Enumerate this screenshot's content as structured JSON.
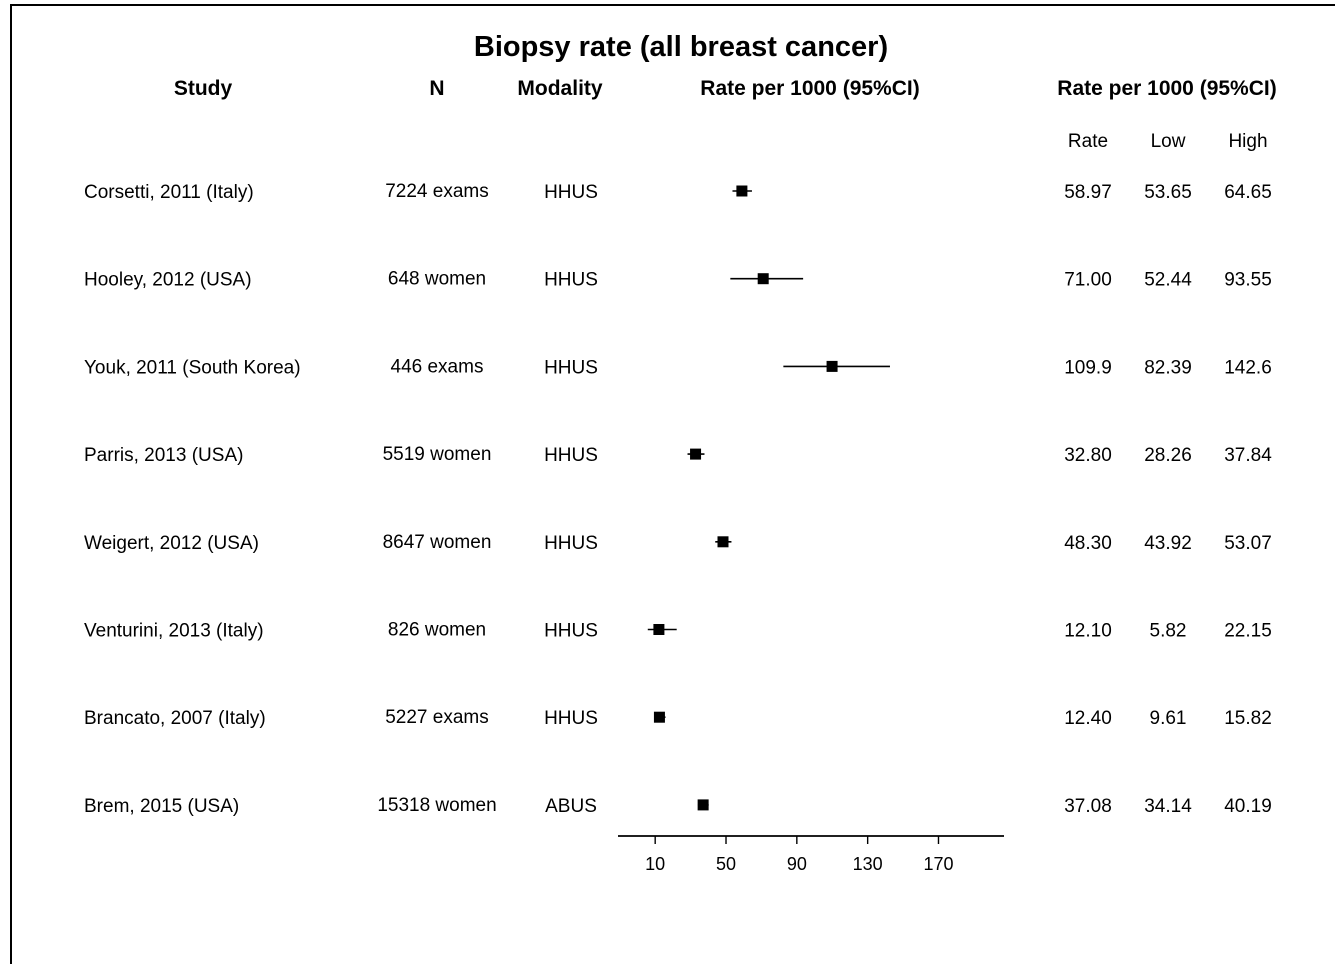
{
  "chart_data": {
    "type": "forest",
    "title": "Biopsy rate (all breast cancer)",
    "headers": {
      "study": "Study",
      "n": "N",
      "modality": "Modality",
      "plot": "Rate per 1000 (95%CI)",
      "table": "Rate per 1000 (95%CI)",
      "rate": "Rate",
      "low": "Low",
      "high": "High"
    },
    "rows": [
      {
        "study": "Corsetti, 2011 (Italy)",
        "n": "7224 exams",
        "modality": "HHUS",
        "rate": 58.97,
        "low": 53.65,
        "high": 64.65,
        "rate_text": "58.97",
        "low_text": "53.65",
        "high_text": "64.65"
      },
      {
        "study": "Hooley, 2012 (USA)",
        "n": "648 women",
        "modality": "HHUS",
        "rate": 71.0,
        "low": 52.44,
        "high": 93.55,
        "rate_text": "71.00",
        "low_text": "52.44",
        "high_text": "93.55"
      },
      {
        "study": "Youk, 2011 (South Korea)",
        "n": "446 exams",
        "modality": "HHUS",
        "rate": 109.9,
        "low": 82.39,
        "high": 142.6,
        "rate_text": "109.9",
        "low_text": "82.39",
        "high_text": "142.6"
      },
      {
        "study": "Parris, 2013 (USA)",
        "n": "5519 women",
        "modality": "HHUS",
        "rate": 32.8,
        "low": 28.26,
        "high": 37.84,
        "rate_text": "32.80",
        "low_text": "28.26",
        "high_text": "37.84"
      },
      {
        "study": "Weigert, 2012 (USA)",
        "n": "8647 women",
        "modality": "HHUS",
        "rate": 48.3,
        "low": 43.92,
        "high": 53.07,
        "rate_text": "48.30",
        "low_text": "43.92",
        "high_text": "53.07"
      },
      {
        "study": "Venturini, 2013 (Italy)",
        "n": "826 women",
        "modality": "HHUS",
        "rate": 12.1,
        "low": 5.82,
        "high": 22.15,
        "rate_text": "12.10",
        "low_text": "5.82",
        "high_text": "22.15"
      },
      {
        "study": "Brancato, 2007 (Italy)",
        "n": "5227 exams",
        "modality": "HHUS",
        "rate": 12.4,
        "low": 9.61,
        "high": 15.82,
        "rate_text": "12.40",
        "low_text": "9.61",
        "high_text": "15.82"
      },
      {
        "study": "Brem, 2015 (USA)",
        "n": "15318 women",
        "modality": "ABUS",
        "rate": 37.08,
        "low": 34.14,
        "high": 40.19,
        "rate_text": "37.08",
        "low_text": "34.14",
        "high_text": "40.19"
      }
    ],
    "x_ticks": [
      10,
      50,
      90,
      130,
      170
    ],
    "xlim": [
      -11,
      207
    ]
  }
}
